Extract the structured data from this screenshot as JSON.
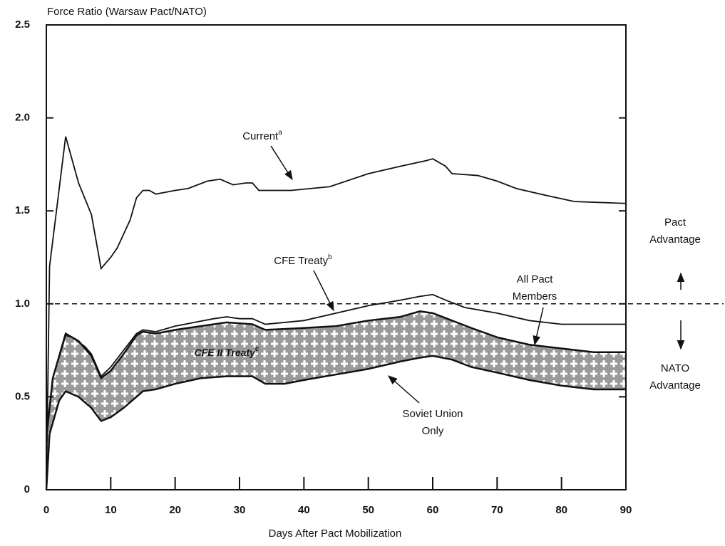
{
  "chart_data": {
    "type": "line",
    "ylabel": "Force Ratio (Warsaw Pact/NATO)",
    "xlabel": "Days After Pact Mobilization",
    "xlim": [
      0,
      90
    ],
    "xticks": [
      0,
      10,
      20,
      30,
      40,
      50,
      60,
      70,
      80,
      90
    ],
    "ylim": [
      0,
      2.5
    ],
    "yticks": [
      0,
      0.5,
      {
        "value": 1,
        "label": "1.0"
      },
      1.5,
      {
        "value": 2,
        "label": "2.0"
      },
      2.5
    ],
    "reference_line": {
      "value": 1,
      "style": "dashed"
    },
    "series": [
      {
        "color": "#111111",
        "x": [
          0,
          0.5,
          3,
          5,
          7,
          8.5,
          10,
          11,
          13,
          14,
          15,
          16,
          17,
          20,
          22,
          25,
          27,
          29,
          31,
          32,
          33,
          38,
          44,
          50,
          55,
          59,
          60,
          62,
          63,
          67,
          70,
          73,
          78,
          82,
          90
        ],
        "values": [
          0,
          1.2,
          1.9,
          1.65,
          1.48,
          1.19,
          1.25,
          1.3,
          1.45,
          1.57,
          1.61,
          1.61,
          1.59,
          1.61,
          1.62,
          1.66,
          1.67,
          1.64,
          1.65,
          1.65,
          1.61,
          1.61,
          1.63,
          1.7,
          1.74,
          1.77,
          1.78,
          1.74,
          1.7,
          1.69,
          1.66,
          1.62,
          1.58,
          1.55,
          1.54
        ]
      },
      {
        "color": "#111111",
        "x": [
          0,
          1,
          3,
          4,
          6,
          7,
          8.5,
          10,
          12,
          14,
          15,
          17,
          20,
          23,
          26,
          28,
          30,
          32,
          34,
          40,
          45,
          50,
          55,
          58,
          60,
          62,
          65,
          70,
          75,
          80,
          90
        ],
        "values": [
          0.3,
          0.6,
          0.83,
          0.82,
          0.77,
          0.73,
          0.61,
          0.66,
          0.75,
          0.84,
          0.86,
          0.85,
          0.88,
          0.9,
          0.92,
          0.93,
          0.92,
          0.92,
          0.89,
          0.91,
          0.95,
          0.99,
          1.02,
          1.04,
          1.05,
          1.02,
          0.98,
          0.95,
          0.91,
          0.89,
          0.89
        ]
      },
      {
        "color": "#111111",
        "x": [
          0,
          1,
          3,
          5,
          7,
          8.5,
          10,
          12,
          14,
          15,
          17,
          20,
          24,
          28,
          32,
          34,
          40,
          45,
          50,
          55,
          58,
          60,
          63,
          66,
          70,
          75,
          80,
          85,
          90
        ],
        "values": [
          0.28,
          0.6,
          0.84,
          0.8,
          0.72,
          0.6,
          0.64,
          0.73,
          0.83,
          0.85,
          0.84,
          0.86,
          0.88,
          0.9,
          0.89,
          0.86,
          0.87,
          0.88,
          0.91,
          0.93,
          0.96,
          0.95,
          0.91,
          0.87,
          0.82,
          0.78,
          0.76,
          0.74,
          0.74
        ]
      },
      {
        "color": "#111111",
        "x": [
          0,
          0.5,
          2,
          3,
          5,
          7,
          8.5,
          10,
          12,
          14,
          15,
          17,
          20,
          24,
          28,
          32,
          34,
          37,
          40,
          45,
          50,
          55,
          58,
          60,
          63,
          66,
          70,
          75,
          80,
          85,
          90
        ],
        "values": [
          0,
          0.3,
          0.48,
          0.53,
          0.5,
          0.44,
          0.37,
          0.39,
          0.44,
          0.5,
          0.53,
          0.54,
          0.57,
          0.6,
          0.61,
          0.61,
          0.57,
          0.57,
          0.59,
          0.62,
          0.65,
          0.69,
          0.71,
          0.72,
          0.7,
          0.66,
          0.63,
          0.59,
          0.56,
          0.54,
          0.54
        ]
      }
    ],
    "band": {
      "color": "#a8a8a8"
    },
    "annotations": [
      {
        "lines": [
          "Current"
        ],
        "sup": "a"
      },
      {
        "lines": [
          "CFE Treaty"
        ],
        "sup": "b"
      },
      {
        "lines": [
          "All Pact",
          "Members"
        ]
      },
      {
        "lines": [
          "Soviet Union",
          "Only"
        ]
      },
      {
        "lines": [
          "CFE II Treaty"
        ],
        "sup": "c"
      },
      {
        "lines": [
          "Pact",
          "Advantage"
        ]
      },
      {
        "lines": [
          "NATO",
          "Advantage"
        ]
      }
    ]
  }
}
